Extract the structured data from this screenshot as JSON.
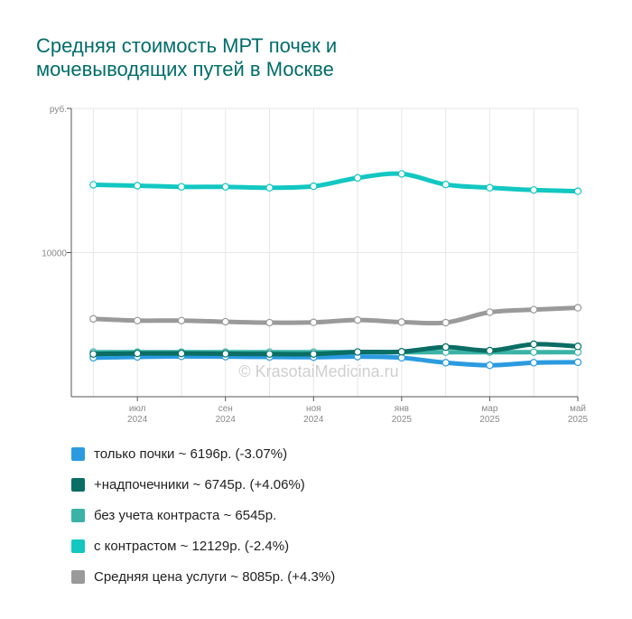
{
  "title_lines": [
    "Средняя стоимость МРТ почек и",
    "мочевыводящих путей в Москве"
  ],
  "watermark": "© KrasotaiMedicina.ru",
  "chart_data": {
    "type": "line",
    "title": "Средняя стоимость МРТ почек и мочевыводящих путей в Москве",
    "xlabel": "",
    "ylabel": "руб.",
    "y_tick_labels": [
      "руб.",
      "10000"
    ],
    "ylim": [
      5000,
      15000
    ],
    "grid": true,
    "legend_position": "bottom",
    "x": [
      "2024-06",
      "2024-07",
      "2024-08",
      "2024-09",
      "2024-10",
      "2024-11",
      "2024-12",
      "2025-01",
      "2025-02",
      "2025-03",
      "2025-04",
      "2025-05"
    ],
    "x_tick_labels": [
      {
        "month": "июл",
        "year": "2024"
      },
      {
        "month": "сен",
        "year": "2024"
      },
      {
        "month": "ноя",
        "year": "2024"
      },
      {
        "month": "янв",
        "year": "2025"
      },
      {
        "month": "мар",
        "year": "2025"
      },
      {
        "month": "май",
        "year": "2025"
      }
    ],
    "series": [
      {
        "name": "только почки",
        "legend": "только почки ~ 6196р. (-3.07%)",
        "color": "#2b9be0",
        "values": [
          6350,
          6380,
          6400,
          6390,
          6380,
          6370,
          6390,
          6350,
          6180,
          6090,
          6180,
          6196
        ]
      },
      {
        "name": "+надпочечники",
        "legend": "+надпочечники ~ 6745р. (+4.06%)",
        "color": "#0a6e65",
        "values": [
          6480,
          6500,
          6500,
          6490,
          6480,
          6480,
          6550,
          6560,
          6720,
          6600,
          6820,
          6745
        ]
      },
      {
        "name": "без учета контраста",
        "legend": "без учета контраста ~ 6545р.",
        "color": "#3ab3a6",
        "values": [
          6545,
          6545,
          6545,
          6545,
          6545,
          6545,
          6545,
          6545,
          6545,
          6545,
          6545,
          6545
        ]
      },
      {
        "name": "с контрастом",
        "legend": "с контрастом ~ 12129р. (-2.4%)",
        "color": "#13c7c2",
        "values": [
          12350,
          12320,
          12280,
          12280,
          12250,
          12300,
          12590,
          12730,
          12360,
          12250,
          12170,
          12129
        ]
      },
      {
        "name": "Средняя цена услуги",
        "legend": "Средняя цена услуги ~ 8085р. (+4.3%)",
        "color": "#9a9a9a",
        "values": [
          7700,
          7640,
          7640,
          7600,
          7570,
          7580,
          7660,
          7590,
          7570,
          7930,
          8020,
          8085
        ]
      }
    ]
  }
}
